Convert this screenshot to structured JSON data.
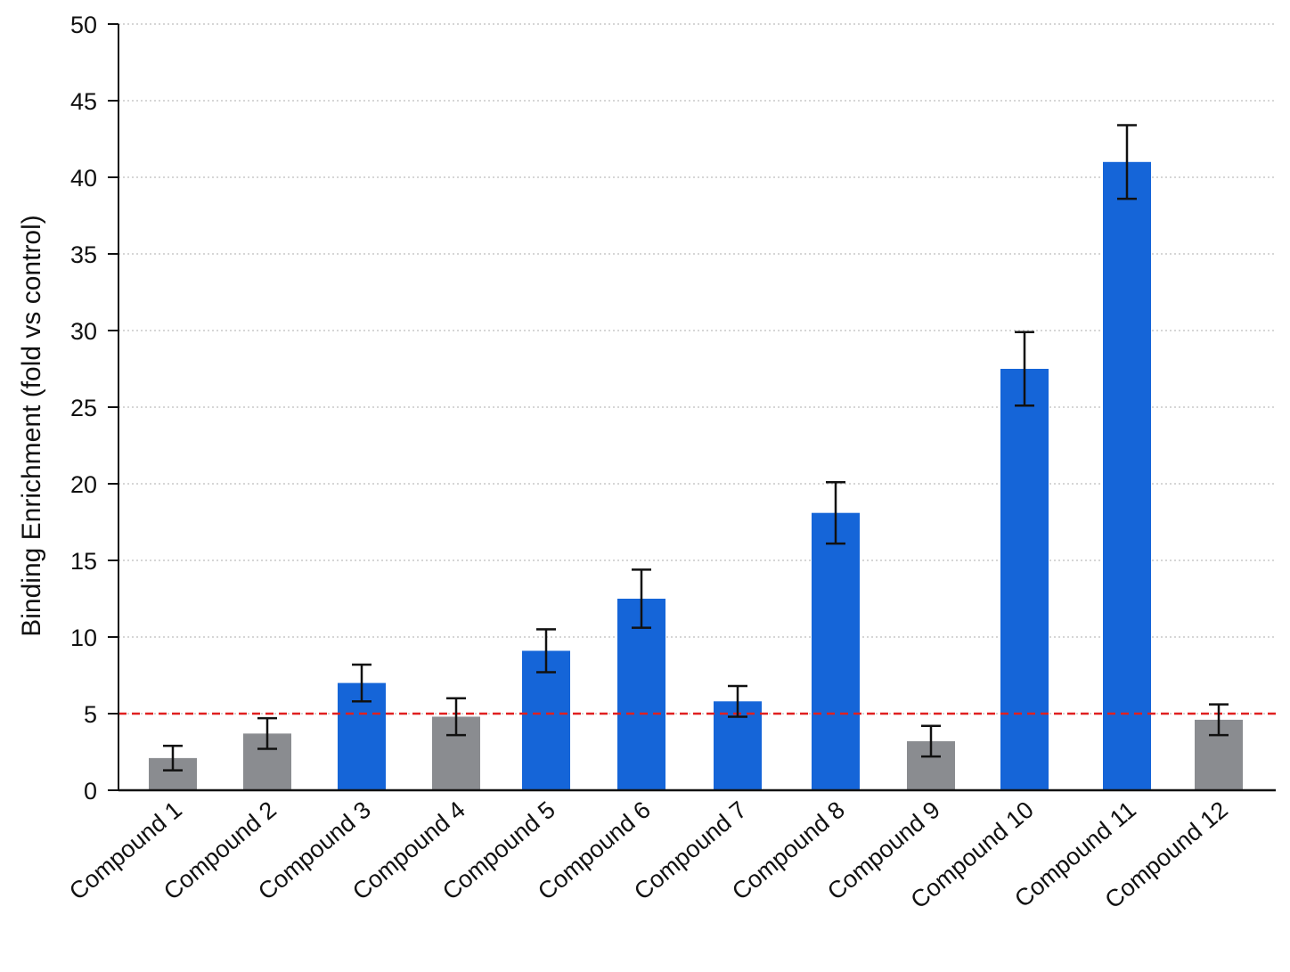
{
  "chart_data": {
    "type": "bar",
    "title": "",
    "xlabel": "",
    "ylabel": "Binding Enrichment (fold vs control)",
    "ylim": [
      0,
      50
    ],
    "yticks": [
      0,
      5,
      10,
      15,
      20,
      25,
      30,
      35,
      40,
      45,
      50
    ],
    "grid": "horizontal dotted",
    "categories": [
      "Compound 1",
      "Compound 2",
      "Compound 3",
      "Compound 4",
      "Compound 5",
      "Compound 6",
      "Compound 7",
      "Compound 8",
      "Compound 9",
      "Compound 10",
      "Compound 11",
      "Compound 12"
    ],
    "values": [
      2.1,
      3.7,
      7.0,
      4.8,
      9.1,
      12.5,
      5.8,
      18.1,
      3.2,
      27.5,
      41.0,
      4.6
    ],
    "errors": [
      0.8,
      1.0,
      1.2,
      1.2,
      1.4,
      1.9,
      1.0,
      2.0,
      1.0,
      2.4,
      2.4,
      1.0
    ],
    "groups": [
      "below",
      "below",
      "above",
      "below",
      "above",
      "above",
      "above",
      "above",
      "below",
      "above",
      "above",
      "below"
    ],
    "threshold": 5,
    "colors": {
      "above": "#1565d8",
      "below": "#8a8c90",
      "threshold": "#e02020",
      "axis": "#111111",
      "grid": "#c8c8c8",
      "error_bar": "#111111"
    }
  }
}
